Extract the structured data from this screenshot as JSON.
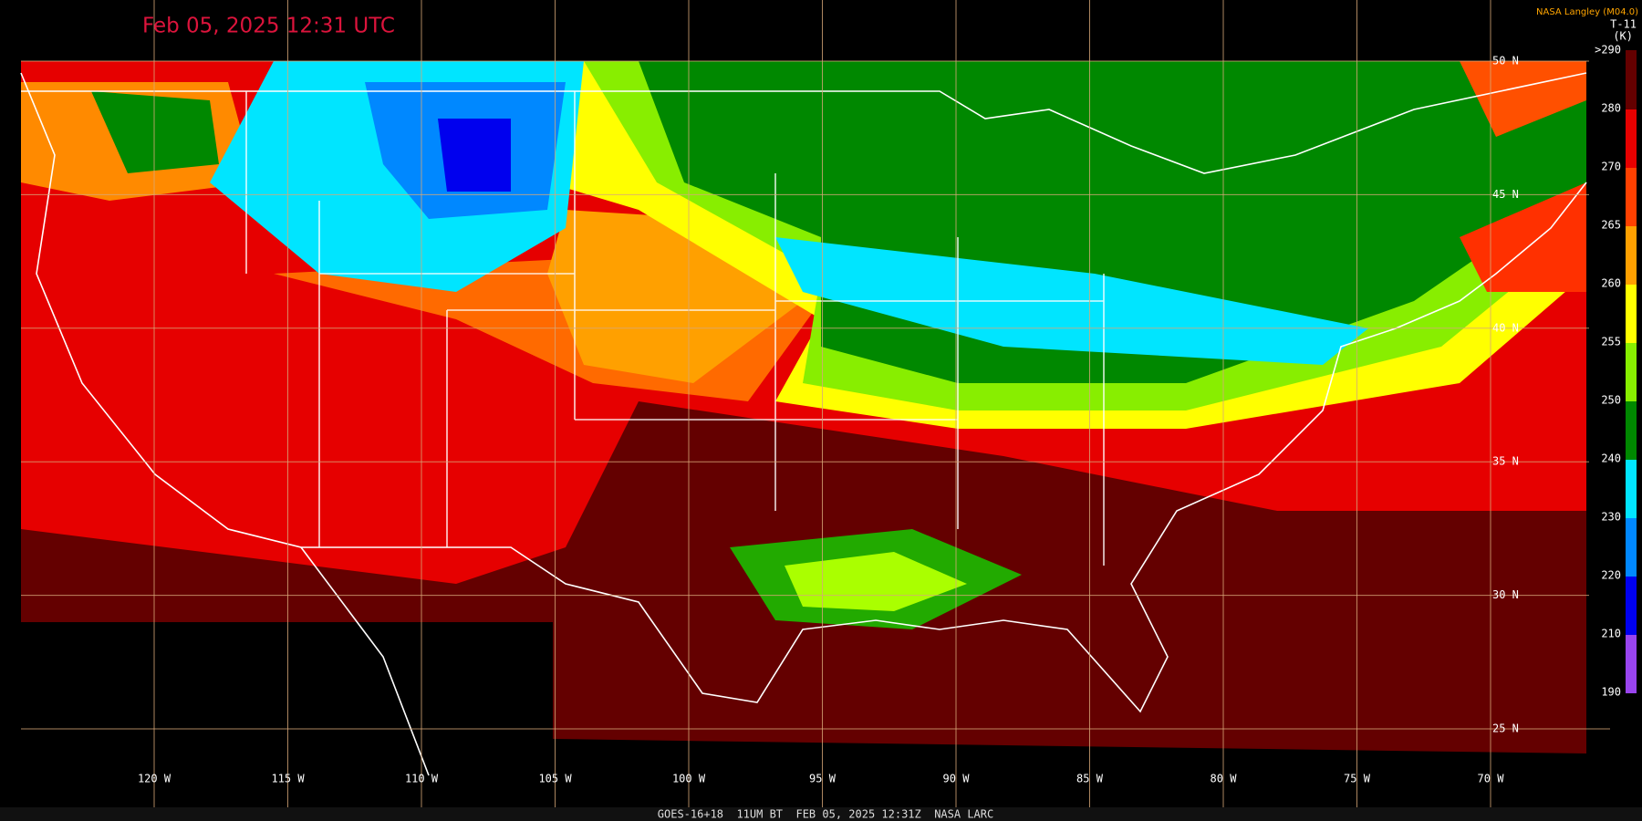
{
  "title": "Feb 05, 2025 12:31 UTC",
  "credit": "NASA Langley (M04.0)",
  "colorbar": {
    "title": "T-11",
    "unit": "(K)",
    "ticks": [
      {
        "value": 290,
        "label": ">290"
      },
      280,
      270,
      265,
      260,
      255,
      250,
      240,
      230,
      220,
      210,
      190
    ]
  },
  "lat_labels": [
    "50 N",
    "45 N",
    "40 N",
    "35 N",
    "30 N",
    "25 N"
  ],
  "lon_labels": [
    "120 W",
    "115 W",
    "110 W",
    "105 W",
    "100 W",
    "95 W",
    "90 W",
    "85 W",
    "80 W",
    "75 W",
    "70 W"
  ],
  "footer": "GOES-16+18  11UM BT  FEB 05, 2025 12:31Z  NASA LARC"
}
